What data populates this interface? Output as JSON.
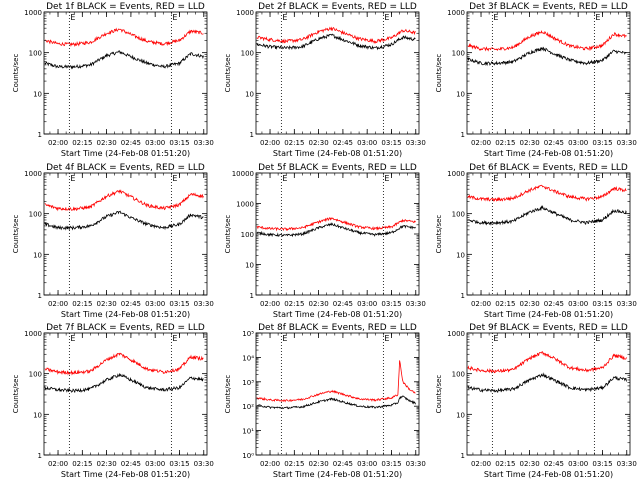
{
  "xlabel": "Start Time (24-Feb-08 01:51:20)",
  "ylabel": "Counts/sec",
  "x_tick_labels": [
    "02:00",
    "02:15",
    "02:30",
    "02:45",
    "03:00",
    "03:15",
    "03:30"
  ],
  "markers": [
    "E",
    "E"
  ],
  "colors": {
    "events": "#000000",
    "lld": "#ff0000",
    "axes": "#000000",
    "background": "#ffffff"
  },
  "chart_data": [
    {
      "type": "line",
      "title": "Det 1f BLACK = Events, RED = LLD",
      "ylog": true,
      "ylim": [
        1,
        1000
      ],
      "y_tick_labels": [
        "1",
        "10",
        "100",
        "1000"
      ],
      "xlim": [
        "01:51:20",
        "03:32:00"
      ],
      "vlines": [
        "02:07",
        "03:10"
      ],
      "series": [
        {
          "name": "Events",
          "x": [
            "01:52",
            "02:00",
            "02:10",
            "02:20",
            "02:30",
            "02:38",
            "02:45",
            "02:55",
            "03:05",
            "03:15",
            "03:22",
            "03:30"
          ],
          "values": [
            55,
            45,
            45,
            50,
            85,
            105,
            80,
            55,
            45,
            55,
            95,
            80
          ]
        },
        {
          "name": "LLD",
          "x": [
            "01:52",
            "02:00",
            "02:10",
            "02:20",
            "02:30",
            "02:38",
            "02:45",
            "02:55",
            "03:05",
            "03:15",
            "03:22",
            "03:30"
          ],
          "values": [
            200,
            165,
            160,
            180,
            300,
            380,
            280,
            190,
            165,
            200,
            340,
            300
          ]
        }
      ]
    },
    {
      "type": "line",
      "title": "Det 2f BLACK = Events, RED = LLD",
      "ylog": true,
      "ylim": [
        1,
        1000
      ],
      "y_tick_labels": [
        "1",
        "10",
        "100",
        "1000"
      ],
      "xlim": [
        "01:51:20",
        "03:32:00"
      ],
      "vlines": [
        "02:07",
        "03:10"
      ],
      "series": [
        {
          "name": "Events",
          "x": [
            "01:52",
            "02:00",
            "02:10",
            "02:20",
            "02:30",
            "02:38",
            "02:45",
            "02:55",
            "03:05",
            "03:15",
            "03:22",
            "03:30"
          ],
          "values": [
            160,
            140,
            130,
            140,
            220,
            270,
            210,
            150,
            130,
            160,
            240,
            210
          ]
        },
        {
          "name": "LLD",
          "x": [
            "01:52",
            "02:00",
            "02:10",
            "02:20",
            "02:30",
            "02:38",
            "02:45",
            "02:55",
            "03:05",
            "03:15",
            "03:22",
            "03:30"
          ],
          "values": [
            240,
            210,
            190,
            210,
            330,
            400,
            310,
            220,
            190,
            230,
            350,
            310
          ]
        }
      ]
    },
    {
      "type": "line",
      "title": "Det 3f BLACK = Events, RED = LLD",
      "ylog": true,
      "ylim": [
        1,
        1000
      ],
      "y_tick_labels": [
        "1",
        "10",
        "100",
        "1000"
      ],
      "xlim": [
        "01:51:20",
        "03:32:00"
      ],
      "vlines": [
        "02:07",
        "03:10"
      ],
      "series": [
        {
          "name": "Events",
          "x": [
            "01:52",
            "02:00",
            "02:10",
            "02:20",
            "02:30",
            "02:38",
            "02:45",
            "02:55",
            "03:05",
            "03:15",
            "03:22",
            "03:30"
          ],
          "values": [
            70,
            55,
            55,
            60,
            100,
            130,
            95,
            65,
            55,
            65,
            110,
            95
          ]
        },
        {
          "name": "LLD",
          "x": [
            "01:52",
            "02:00",
            "02:10",
            "02:20",
            "02:30",
            "02:38",
            "02:45",
            "02:55",
            "03:05",
            "03:15",
            "03:22",
            "03:30"
          ],
          "values": [
            150,
            125,
            120,
            135,
            250,
            330,
            230,
            145,
            125,
            150,
            290,
            250
          ]
        }
      ]
    },
    {
      "type": "line",
      "title": "Det 4f BLACK = Events, RED = LLD",
      "ylog": true,
      "ylim": [
        1,
        1000
      ],
      "y_tick_labels": [
        "1",
        "10",
        "100",
        "1000"
      ],
      "xlim": [
        "01:51:20",
        "03:32:00"
      ],
      "vlines": [
        "02:07",
        "03:10"
      ],
      "series": [
        {
          "name": "Events",
          "x": [
            "01:52",
            "02:00",
            "02:10",
            "02:20",
            "02:30",
            "02:38",
            "02:45",
            "02:55",
            "03:05",
            "03:15",
            "03:22",
            "03:30"
          ],
          "values": [
            55,
            45,
            45,
            50,
            85,
            110,
            80,
            55,
            45,
            55,
            95,
            80
          ]
        },
        {
          "name": "LLD",
          "x": [
            "01:52",
            "02:00",
            "02:10",
            "02:20",
            "02:30",
            "02:38",
            "02:45",
            "02:55",
            "03:05",
            "03:15",
            "03:22",
            "03:30"
          ],
          "values": [
            165,
            135,
            130,
            145,
            270,
            360,
            260,
            160,
            135,
            165,
            300,
            270
          ]
        }
      ]
    },
    {
      "type": "line",
      "title": "Det 5f BLACK = Events, RED = LLD",
      "ylog": true,
      "ylim": [
        1,
        10000
      ],
      "y_tick_labels": [
        "1",
        "10",
        "100",
        "1000",
        "10000"
      ],
      "xlim": [
        "01:51:20",
        "03:32:00"
      ],
      "vlines": [
        "02:07",
        "03:10"
      ],
      "series": [
        {
          "name": "Events",
          "x": [
            "01:52",
            "02:00",
            "02:10",
            "02:20",
            "02:30",
            "02:38",
            "02:45",
            "02:55",
            "03:05",
            "03:15",
            "03:22",
            "03:30"
          ],
          "values": [
            110,
            95,
            90,
            100,
            160,
            210,
            160,
            110,
            95,
            110,
            180,
            160
          ]
        },
        {
          "name": "LLD",
          "x": [
            "01:52",
            "02:00",
            "02:10",
            "02:20",
            "02:30",
            "02:38",
            "02:45",
            "02:55",
            "03:05",
            "03:15",
            "03:22",
            "03:30"
          ],
          "values": [
            170,
            150,
            145,
            160,
            250,
            330,
            250,
            170,
            150,
            170,
            280,
            250
          ]
        }
      ]
    },
    {
      "type": "line",
      "title": "Det 6f BLACK = Events, RED = LLD",
      "ylog": true,
      "ylim": [
        1,
        1000
      ],
      "y_tick_labels": [
        "1",
        "10",
        "100",
        "1000"
      ],
      "xlim": [
        "01:51:20",
        "03:32:00"
      ],
      "vlines": [
        "02:07",
        "03:10"
      ],
      "series": [
        {
          "name": "Events",
          "x": [
            "01:52",
            "02:00",
            "02:10",
            "02:20",
            "02:30",
            "02:38",
            "02:45",
            "02:55",
            "03:05",
            "03:15",
            "03:22",
            "03:30"
          ],
          "values": [
            70,
            60,
            60,
            65,
            110,
            140,
            105,
            70,
            60,
            70,
            120,
            105
          ]
        },
        {
          "name": "LLD",
          "x": [
            "01:52",
            "02:00",
            "02:10",
            "02:20",
            "02:30",
            "02:38",
            "02:45",
            "02:55",
            "03:05",
            "03:15",
            "03:22",
            "03:30"
          ],
          "values": [
            260,
            230,
            220,
            240,
            380,
            480,
            360,
            260,
            230,
            260,
            420,
            370
          ]
        }
      ]
    },
    {
      "type": "line",
      "title": "Det 7f BLACK = Events, RED = LLD",
      "ylog": true,
      "ylim": [
        1,
        1000
      ],
      "y_tick_labels": [
        "1",
        "10",
        "100",
        "1000"
      ],
      "xlim": [
        "01:51:20",
        "03:32:00"
      ],
      "vlines": [
        "02:07",
        "03:10"
      ],
      "series": [
        {
          "name": "Events",
          "x": [
            "01:52",
            "02:00",
            "02:10",
            "02:20",
            "02:30",
            "02:38",
            "02:45",
            "02:55",
            "03:05",
            "03:15",
            "03:22",
            "03:30"
          ],
          "values": [
            45,
            40,
            38,
            42,
            70,
            95,
            70,
            45,
            40,
            45,
            80,
            70
          ]
        },
        {
          "name": "LLD",
          "x": [
            "01:52",
            "02:00",
            "02:10",
            "02:20",
            "02:30",
            "02:38",
            "02:45",
            "02:55",
            "03:05",
            "03:15",
            "03:22",
            "03:30"
          ],
          "values": [
            130,
            110,
            105,
            115,
            220,
            310,
            220,
            130,
            110,
            130,
            260,
            230
          ]
        }
      ]
    },
    {
      "type": "line",
      "title": "Det 8f BLACK = Events, RED = LLD",
      "ylog": true,
      "ylim": [
        1,
        100000
      ],
      "y_tick_labels": [
        "10⁰",
        "10¹",
        "10²",
        "10³",
        "10⁴",
        "10⁵"
      ],
      "xlim": [
        "01:51:20",
        "03:32:00"
      ],
      "vlines": [
        "02:07",
        "03:10"
      ],
      "series": [
        {
          "name": "Events",
          "x": [
            "01:52",
            "02:00",
            "02:10",
            "02:20",
            "02:30",
            "02:38",
            "02:45",
            "02:55",
            "03:05",
            "03:15",
            "03:19",
            "03:20",
            "03:22",
            "03:26",
            "03:30"
          ],
          "values": [
            110,
            90,
            85,
            95,
            150,
            200,
            150,
            100,
            90,
            110,
            140,
            220,
            250,
            170,
            130
          ]
        },
        {
          "name": "LLD",
          "x": [
            "01:52",
            "02:00",
            "02:10",
            "02:20",
            "02:30",
            "02:38",
            "02:45",
            "02:55",
            "03:05",
            "03:15",
            "03:19",
            "03:20",
            "03:22",
            "03:26",
            "03:30"
          ],
          "values": [
            220,
            180,
            170,
            190,
            310,
            420,
            310,
            200,
            180,
            220,
            300,
            8000,
            1000,
            500,
            330
          ]
        }
      ]
    },
    {
      "type": "line",
      "title": "Det 9f BLACK = Events, RED = LLD",
      "ylog": true,
      "ylim": [
        1,
        1000
      ],
      "y_tick_labels": [
        "1",
        "10",
        "100",
        "1000"
      ],
      "xlim": [
        "01:51:20",
        "03:32:00"
      ],
      "vlines": [
        "02:07",
        "03:10"
      ],
      "series": [
        {
          "name": "Events",
          "x": [
            "01:52",
            "02:00",
            "02:10",
            "02:20",
            "02:30",
            "02:38",
            "02:45",
            "02:55",
            "03:05",
            "03:15",
            "03:22",
            "03:30"
          ],
          "values": [
            45,
            40,
            38,
            42,
            70,
            95,
            70,
            45,
            40,
            45,
            80,
            70
          ]
        },
        {
          "name": "LLD",
          "x": [
            "01:52",
            "02:00",
            "02:10",
            "02:20",
            "02:30",
            "02:38",
            "02:45",
            "02:55",
            "03:05",
            "03:15",
            "03:22",
            "03:30"
          ],
          "values": [
            140,
            120,
            115,
            125,
            240,
            330,
            240,
            140,
            120,
            140,
            280,
            240
          ]
        }
      ]
    }
  ]
}
